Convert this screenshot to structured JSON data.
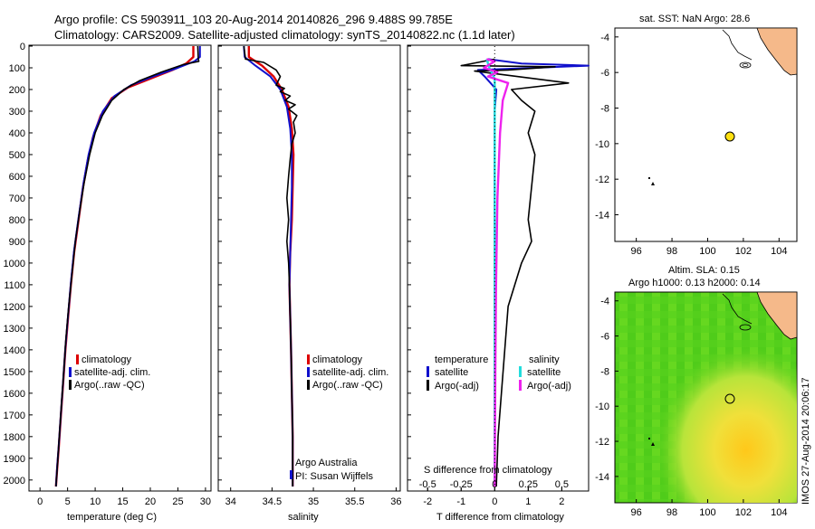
{
  "header": {
    "line1": "Argo profile: CS 5903911_103 20-Aug-2014 20140826_296 9.488S 99.785E",
    "line2": "Climatology: CARS2009. Satellite-adjusted climatology: synTS_20140822.nc (1.1d later)"
  },
  "colors": {
    "climatology": "#dd0000",
    "satellite": "#1010cc",
    "argo": "#000000",
    "sat_salinity": "#22dddd",
    "argo_salinity": "#ee22ee",
    "map_land": "#f5b98a",
    "argo_marker": "#ffe010"
  },
  "depth_axis": {
    "ticks": [
      0,
      100,
      200,
      300,
      400,
      500,
      600,
      700,
      800,
      900,
      1000,
      1100,
      1200,
      1300,
      1400,
      1500,
      1600,
      1700,
      1800,
      1900,
      2000
    ]
  },
  "panels": {
    "temperature": {
      "xlabel": "temperature (deg C)",
      "xticks": [
        "0",
        "5",
        "10",
        "15",
        "20",
        "25",
        "30"
      ],
      "legend": [
        "climatology",
        "satellite-adj. clim.",
        "Argo(..raw -QC)"
      ]
    },
    "salinity": {
      "xlabel": "salinity",
      "xticks": [
        "34",
        "34.5",
        "35",
        "35.5",
        "36"
      ],
      "legend": [
        "climatology",
        "satellite-adj. clim.",
        "Argo(..raw -QC)"
      ],
      "credit1": "Argo Australia",
      "credit2": "PI: Susan Wijffels"
    },
    "difference": {
      "top_label": "S difference from climatology",
      "top_ticks": [
        "-0.5",
        "-0.25",
        "0",
        "0.25",
        "0.5"
      ],
      "xlabel": "T difference from climatology",
      "xticks": [
        "-2",
        "-1",
        "0",
        "1",
        "2"
      ],
      "legend_t_head": "temperature",
      "legend_s_head": "salinity",
      "legend_t": [
        "satellite",
        "Argo(-adj)"
      ],
      "legend_s": [
        "satellite",
        "Argo(-adj)"
      ]
    },
    "map_sst": {
      "title": "sat. SST: NaN Argo: 28.6",
      "yticks": [
        "-4",
        "-6",
        "-8",
        "-10",
        "-12",
        "-14"
      ],
      "xticks": [
        "96",
        "98",
        "100",
        "102",
        "104"
      ]
    },
    "map_sla": {
      "title1": "Altim. SLA: 0.15",
      "title2": "Argo h1000: 0.13 h2000: 0.14",
      "yticks": [
        "-4",
        "-6",
        "-8",
        "-10",
        "-12",
        "-14"
      ],
      "xticks": [
        "96",
        "98",
        "100",
        "102",
        "104"
      ],
      "imos": "IMOS 27-Aug-2014 20:06:17"
    }
  },
  "chart_data": [
    {
      "type": "line",
      "title": "",
      "xlabel": "temperature (deg C)",
      "ylabel": "",
      "xlim": [
        -2,
        31
      ],
      "ylim": [
        2050,
        0
      ],
      "series": [
        {
          "name": "climatology",
          "points": [
            [
              27.8,
              0
            ],
            [
              27.8,
              50
            ],
            [
              26.5,
              80
            ],
            [
              24,
              110
            ],
            [
              20,
              150
            ],
            [
              16,
              190
            ],
            [
              13,
              240
            ],
            [
              11,
              320
            ],
            [
              9.6,
              420
            ],
            [
              8.7,
              520
            ],
            [
              7.8,
              650
            ],
            [
              7,
              800
            ],
            [
              6.2,
              950
            ],
            [
              5.6,
              1100
            ],
            [
              5.1,
              1250
            ],
            [
              4.6,
              1400
            ],
            [
              4.2,
              1550
            ],
            [
              3.8,
              1700
            ],
            [
              3.4,
              1850
            ],
            [
              3.1,
              1950
            ],
            [
              2.9,
              2030
            ]
          ]
        },
        {
          "name": "satellite-adj. clim.",
          "points": [
            [
              29,
              0
            ],
            [
              29,
              50
            ],
            [
              28,
              70
            ],
            [
              25,
              100
            ],
            [
              20.5,
              140
            ],
            [
              16.5,
              180
            ],
            [
              13.5,
              230
            ],
            [
              11.4,
              300
            ],
            [
              9.8,
              400
            ],
            [
              8.8,
              500
            ],
            [
              7.9,
              630
            ],
            [
              7,
              790
            ],
            [
              6.2,
              940
            ],
            [
              5.6,
              1090
            ],
            [
              5.1,
              1240
            ],
            [
              4.6,
              1390
            ],
            [
              4.2,
              1540
            ],
            [
              3.8,
              1690
            ],
            [
              3.4,
              1840
            ],
            [
              3.1,
              1940
            ],
            [
              2.9,
              2030
            ]
          ]
        },
        {
          "name": "Argo(..raw -QC)",
          "points": [
            [
              28.6,
              0
            ],
            [
              28.7,
              60
            ],
            [
              28.8,
              70
            ],
            [
              26,
              85
            ],
            [
              22,
              120
            ],
            [
              18,
              160
            ],
            [
              15.2,
              200
            ],
            [
              13,
              250
            ],
            [
              11.3,
              320
            ],
            [
              10,
              400
            ],
            [
              9,
              500
            ],
            [
              8,
              630
            ],
            [
              7.2,
              760
            ],
            [
              6.4,
              900
            ],
            [
              5.8,
              1050
            ],
            [
              5.2,
              1200
            ],
            [
              4.7,
              1350
            ],
            [
              4.3,
              1500
            ],
            [
              3.9,
              1650
            ],
            [
              3.5,
              1800
            ],
            [
              3.1,
              1950
            ],
            [
              2.9,
              2030
            ]
          ]
        }
      ]
    },
    {
      "type": "line",
      "title": "",
      "xlabel": "salinity",
      "ylabel": "",
      "xlim": [
        33.85,
        36.05
      ],
      "ylim": [
        2050,
        0
      ],
      "series": [
        {
          "name": "climatology",
          "points": [
            [
              34.22,
              0
            ],
            [
              34.22,
              50
            ],
            [
              34.38,
              90
            ],
            [
              34.52,
              140
            ],
            [
              34.62,
              200
            ],
            [
              34.7,
              280
            ],
            [
              34.74,
              380
            ],
            [
              34.76,
              500
            ],
            [
              34.75,
              650
            ],
            [
              34.74,
              800
            ],
            [
              34.72,
              950
            ],
            [
              34.71,
              1100
            ],
            [
              34.72,
              1250
            ],
            [
              34.73,
              1400
            ],
            [
              34.74,
              1600
            ],
            [
              34.75,
              1800
            ],
            [
              34.75,
              2030
            ]
          ]
        },
        {
          "name": "satellite-adj. clim.",
          "points": [
            [
              34.16,
              0
            ],
            [
              34.17,
              50
            ],
            [
              34.3,
              90
            ],
            [
              34.48,
              140
            ],
            [
              34.6,
              200
            ],
            [
              34.68,
              280
            ],
            [
              34.72,
              380
            ],
            [
              34.74,
              500
            ],
            [
              34.74,
              650
            ],
            [
              34.73,
              800
            ],
            [
              34.72,
              950
            ],
            [
              34.71,
              1100
            ],
            [
              34.72,
              1250
            ],
            [
              34.73,
              1400
            ],
            [
              34.74,
              1600
            ],
            [
              34.75,
              1800
            ],
            [
              34.75,
              2030
            ]
          ]
        },
        {
          "name": "Argo(..raw -QC)",
          "points": [
            [
              34.16,
              0
            ],
            [
              34.18,
              60
            ],
            [
              34.4,
              75
            ],
            [
              34.55,
              110
            ],
            [
              34.6,
              140
            ],
            [
              34.55,
              180
            ],
            [
              34.65,
              195
            ],
            [
              34.6,
              210
            ],
            [
              34.72,
              230
            ],
            [
              34.66,
              250
            ],
            [
              34.78,
              270
            ],
            [
              34.7,
              290
            ],
            [
              34.8,
              320
            ],
            [
              34.76,
              350
            ],
            [
              34.78,
              400
            ],
            [
              34.74,
              450
            ],
            [
              34.72,
              520
            ],
            [
              34.7,
              600
            ],
            [
              34.68,
              700
            ],
            [
              34.7,
              800
            ],
            [
              34.68,
              900
            ],
            [
              34.7,
              1000
            ],
            [
              34.71,
              1100
            ],
            [
              34.72,
              1250
            ],
            [
              34.73,
              1400
            ],
            [
              34.74,
              1600
            ],
            [
              34.75,
              1800
            ],
            [
              34.75,
              2030
            ]
          ]
        }
      ]
    },
    {
      "type": "line",
      "title": "",
      "xlabel": "T difference from climatology",
      "ylabel": "",
      "xlim": [
        -2.6,
        2.8
      ],
      "ylim": [
        2050,
        0
      ],
      "series": [
        {
          "name": "temperature satellite",
          "points": [
            [
              -0.2,
              60
            ],
            [
              0.8,
              80
            ],
            [
              2.8,
              90
            ],
            [
              1.2,
              100
            ],
            [
              -0.5,
              110
            ],
            [
              -0.3,
              140
            ],
            [
              0.05,
              200
            ],
            [
              0,
              300
            ],
            [
              0,
              500
            ],
            [
              0,
              800
            ],
            [
              0,
              1200
            ],
            [
              0,
              2030
            ]
          ]
        },
        {
          "name": "temperature Argo(-adj)",
          "points": [
            [
              0,
              60
            ],
            [
              -1,
              90
            ],
            [
              1.8,
              95
            ],
            [
              0.4,
              110
            ],
            [
              -0.6,
              115
            ],
            [
              2.2,
              170
            ],
            [
              0.5,
              200
            ],
            [
              0.8,
              250
            ],
            [
              1.2,
              300
            ],
            [
              1,
              400
            ],
            [
              1.2,
              500
            ],
            [
              1.1,
              650
            ],
            [
              1,
              800
            ],
            [
              1.1,
              900
            ],
            [
              0.8,
              1000
            ],
            [
              0.6,
              1100
            ],
            [
              0.4,
              1200
            ],
            [
              0.3,
              1400
            ],
            [
              0.2,
              1600
            ],
            [
              0.1,
              1800
            ],
            [
              0.05,
              2030
            ]
          ]
        }
      ]
    },
    {
      "type": "line",
      "title": "S difference from climatology",
      "xlabel": "",
      "ylabel": "",
      "xlim": [
        -0.65,
        0.7
      ],
      "ylim": [
        2050,
        0
      ],
      "series": [
        {
          "name": "salinity satellite",
          "points": [
            [
              -0.06,
              60
            ],
            [
              -0.04,
              100
            ],
            [
              0,
              150
            ],
            [
              0,
              300
            ],
            [
              0,
              600
            ],
            [
              0,
              1000
            ],
            [
              0,
              1500
            ],
            [
              0,
              2030
            ]
          ]
        },
        {
          "name": "salinity Argo(-adj)",
          "points": [
            [
              -0.06,
              60
            ],
            [
              0,
              70
            ],
            [
              -0.08,
              100
            ],
            [
              0.02,
              120
            ],
            [
              -0.05,
              140
            ],
            [
              0.1,
              170
            ],
            [
              0.06,
              250
            ],
            [
              0.04,
              400
            ],
            [
              0.02,
              700
            ],
            [
              0.01,
              1100
            ],
            [
              0.005,
              1500
            ],
            [
              0,
              2030
            ]
          ]
        }
      ]
    },
    {
      "type": "scatter",
      "title": "sat. SST: NaN Argo: 28.6",
      "xlim": [
        94.8,
        105
      ],
      "ylim": [
        -15.5,
        -3.5
      ],
      "points": [
        [
          99.785,
          -9.488
        ]
      ],
      "grid": false
    },
    {
      "type": "heatmap",
      "title": "Altim. SLA: 0.15",
      "xlim": [
        94.8,
        105
      ],
      "ylim": [
        -15.5,
        -3.5
      ],
      "points": [
        [
          99.785,
          -9.488
        ]
      ],
      "grid": false
    }
  ]
}
